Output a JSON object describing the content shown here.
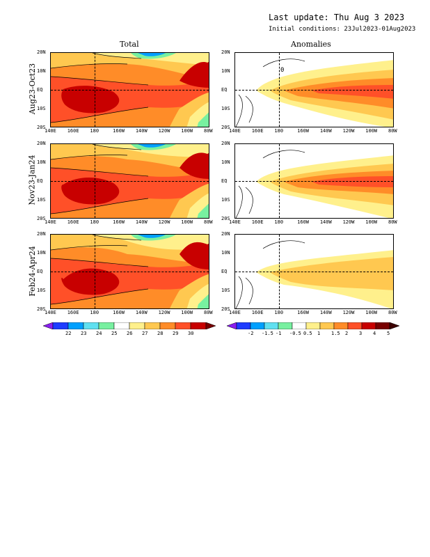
{
  "header": {
    "last_update": "Last update: Thu Aug 3 2023",
    "initial_conditions": "Initial conditions: 23Jul2023-01Aug2023"
  },
  "columns": {
    "total": "Total",
    "anomalies": "Anomalies"
  },
  "rows": [
    {
      "label": "Aug23-Oct23"
    },
    {
      "label": "Nov23-Jan24"
    },
    {
      "label": "Feb24-Apr24"
    }
  ],
  "lat_ticks": [
    "20N",
    "10N",
    "EQ",
    "10S",
    "20S"
  ],
  "lon_ticks": [
    "140E",
    "160E",
    "180",
    "160W",
    "140W",
    "120W",
    "100W",
    "80W"
  ],
  "anomaly_contour_label": "0",
  "colorbars": {
    "total": {
      "labels": [
        "22",
        "23",
        "24",
        "25",
        "26",
        "27",
        "28",
        "29",
        "30"
      ],
      "colors": [
        "#8a1ef0",
        "#1e3cff",
        "#00a0ff",
        "#60e0f0",
        "#78f0a0",
        "#ffffff",
        "#fff08c",
        "#ffc850",
        "#ff8c28",
        "#ff5028",
        "#c80000",
        "#780000"
      ]
    },
    "anomaly": {
      "labels": [
        "-2",
        "-1.5",
        "-1",
        "-0.5",
        "0.5",
        "1",
        "1.5",
        "2",
        "3",
        "4",
        "5"
      ],
      "colors": [
        "#8a1ef0",
        "#1e3cff",
        "#00a0ff",
        "#60e0f0",
        "#78f0a0",
        "#ffffff",
        "#fff08c",
        "#ffc850",
        "#ff8c28",
        "#ff5028",
        "#c80000",
        "#780000",
        "#3c0000"
      ]
    }
  }
}
